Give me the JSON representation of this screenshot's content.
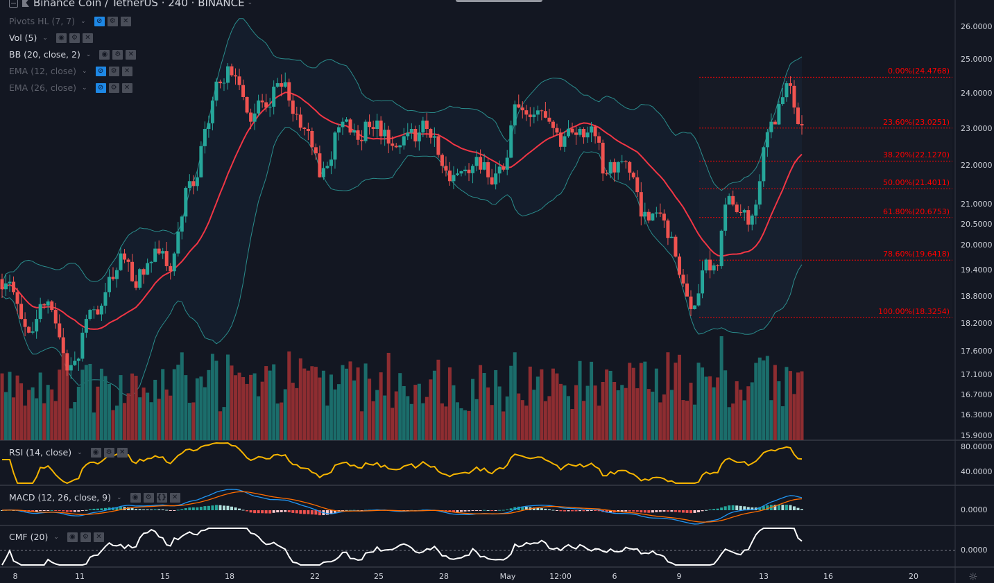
{
  "header": {
    "symbol": "Binance Coin / TetherUS",
    "interval": "240",
    "exchange": "BINANCE",
    "title": "Binance Coin / TetherUS · 240 · BINANCE"
  },
  "indicators": [
    {
      "label": "Pivots HL (7, 7)",
      "hidden": true
    },
    {
      "label": "Vol (5)",
      "hidden": false
    },
    {
      "label": "BB (20, close, 2)",
      "hidden": false
    },
    {
      "label": "EMA (12, close)",
      "hidden": true
    },
    {
      "label": "EMA (26, close)",
      "hidden": true
    }
  ],
  "panes": {
    "rsi": {
      "label": "RSI (14, close)",
      "ticks": [
        "80.0000",
        "40.0000"
      ]
    },
    "macd": {
      "label": "MACD (12, 26, close, 9)",
      "ticks": [
        "0.0000"
      ]
    },
    "cmf": {
      "label": "CMF (20)",
      "ticks": [
        "0.0000"
      ]
    }
  },
  "price_axis": [
    "26.0000",
    "25.0000",
    "24.0000",
    "23.0000",
    "22.0000",
    "21.0000",
    "20.5000",
    "20.0000",
    "19.4000",
    "18.8000",
    "18.2000",
    "17.6000",
    "17.1000",
    "16.7000",
    "16.3000",
    "15.9000"
  ],
  "time_axis": [
    "8",
    "11",
    "15",
    "18",
    "22",
    "25",
    "28",
    "May",
    "12:00",
    "6",
    "9",
    "13",
    "16",
    "20"
  ],
  "fibonacci": [
    {
      "label": "0.00%(24.4768)",
      "price": 24.4768
    },
    {
      "label": "23.60%(23.0251)",
      "price": 23.0251
    },
    {
      "label": "38.20%(22.1270)",
      "price": 22.127
    },
    {
      "label": "50.00%(21.4011)",
      "price": 21.4011
    },
    {
      "label": "61.80%(20.6753)",
      "price": 20.6753
    },
    {
      "label": "78.60%(19.6418)",
      "price": 19.6418
    },
    {
      "label": "100.00%(18.3254)",
      "price": 18.3254
    }
  ],
  "colors": {
    "background": "#131722",
    "up": "#26a69a",
    "down": "#ef5350",
    "bb_basis": "#f23645",
    "bb_band": "#2a8c8c",
    "rsi": "#f7b500",
    "macd": "#2196f3",
    "signal": "#ff6d00",
    "cmf": "#ffffff",
    "fib": "#ff0000",
    "hidden_toggle": "#1e88e5"
  },
  "chart_data": {
    "type": "candlestick",
    "scale": "log",
    "ylim": [
      15.9,
      26.0
    ],
    "closes": [
      19.1,
      18.9,
      18.3,
      18.0,
      18.3,
      18.6,
      18.5,
      17.9,
      17.2,
      17.4,
      18.0,
      18.5,
      18.4,
      18.9,
      19.2,
      19.8,
      19.6,
      19.0,
      19.3,
      19.6,
      19.8,
      19.5,
      19.8,
      20.7,
      21.6,
      21.7,
      23.0,
      23.8,
      24.3,
      24.8,
      24.5,
      23.9,
      23.2,
      23.8,
      23.6,
      24.2,
      24.2,
      23.8,
      23.4,
      23.0,
      22.5,
      21.7,
      22.0,
      22.9,
      23.2,
      22.9,
      22.7,
      23.2,
      23.0,
      22.8,
      22.6,
      22.5,
      22.8,
      23.0,
      22.9,
      23.0,
      22.8,
      22.0,
      21.6,
      21.8,
      21.9,
      22.0,
      21.9,
      21.7,
      21.8,
      21.9,
      23.1,
      23.6,
      23.4,
      23.4,
      23.5,
      23.2,
      22.9,
      22.8,
      22.9,
      23.0,
      22.9,
      22.8,
      21.8,
      22.1,
      22.1,
      22.1,
      21.7,
      20.7,
      20.6,
      20.8,
      20.6,
      20.2,
      19.3,
      18.8,
      18.6,
      19.4,
      19.4,
      19.5,
      21.0,
      21.0,
      20.8,
      20.5,
      21.0,
      22.5,
      23.2,
      23.7,
      24.3,
      23.6,
      23.1
    ]
  }
}
